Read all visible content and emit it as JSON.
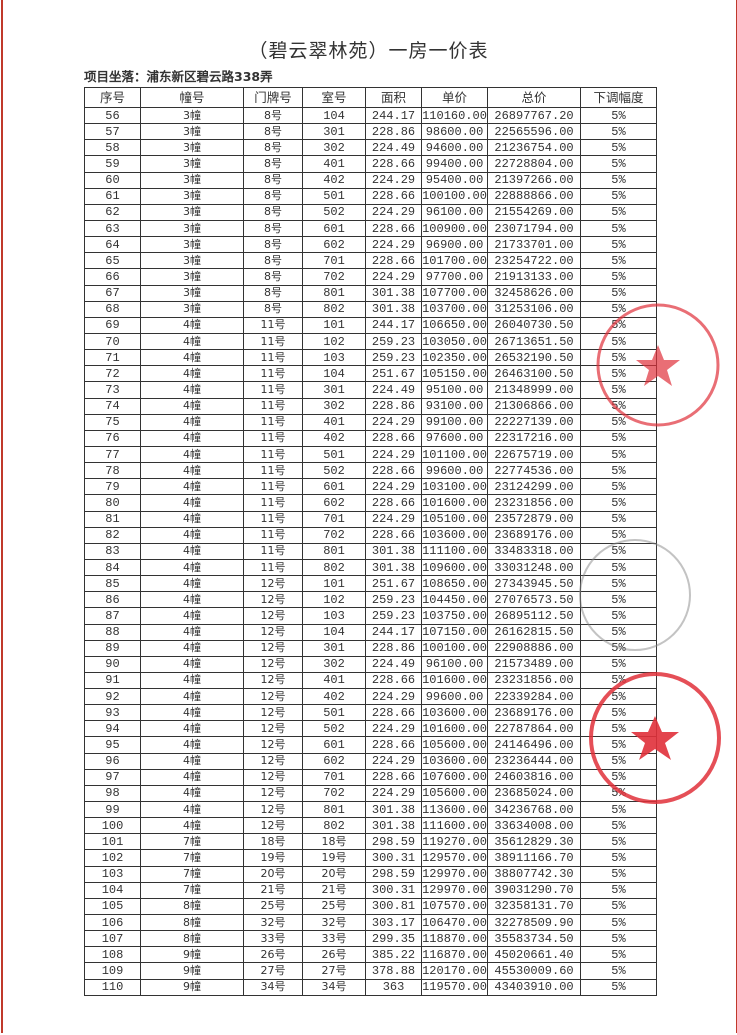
{
  "document": {
    "title": "（碧云翠林苑）一房一价表",
    "location": "项目坐落：浦东新区碧云路338弄",
    "columns": [
      "序号",
      "幢号",
      "门牌号",
      "室号",
      "面积",
      "单价",
      "总价",
      "下调幅度"
    ],
    "rows": [
      [
        "56",
        "3幢",
        "8号",
        "104",
        "244.17",
        "110160.00",
        "26897767.20",
        "5%"
      ],
      [
        "57",
        "3幢",
        "8号",
        "301",
        "228.86",
        "98600.00",
        "22565596.00",
        "5%"
      ],
      [
        "58",
        "3幢",
        "8号",
        "302",
        "224.49",
        "94600.00",
        "21236754.00",
        "5%"
      ],
      [
        "59",
        "3幢",
        "8号",
        "401",
        "228.66",
        "99400.00",
        "22728804.00",
        "5%"
      ],
      [
        "60",
        "3幢",
        "8号",
        "402",
        "224.29",
        "95400.00",
        "21397266.00",
        "5%"
      ],
      [
        "61",
        "3幢",
        "8号",
        "501",
        "228.66",
        "100100.00",
        "22888866.00",
        "5%"
      ],
      [
        "62",
        "3幢",
        "8号",
        "502",
        "224.29",
        "96100.00",
        "21554269.00",
        "5%"
      ],
      [
        "63",
        "3幢",
        "8号",
        "601",
        "228.66",
        "100900.00",
        "23071794.00",
        "5%"
      ],
      [
        "64",
        "3幢",
        "8号",
        "602",
        "224.29",
        "96900.00",
        "21733701.00",
        "5%"
      ],
      [
        "65",
        "3幢",
        "8号",
        "701",
        "228.66",
        "101700.00",
        "23254722.00",
        "5%"
      ],
      [
        "66",
        "3幢",
        "8号",
        "702",
        "224.29",
        "97700.00",
        "21913133.00",
        "5%"
      ],
      [
        "67",
        "3幢",
        "8号",
        "801",
        "301.38",
        "107700.00",
        "32458626.00",
        "5%"
      ],
      [
        "68",
        "3幢",
        "8号",
        "802",
        "301.38",
        "103700.00",
        "31253106.00",
        "5%"
      ],
      [
        "69",
        "4幢",
        "11号",
        "101",
        "244.17",
        "106650.00",
        "26040730.50",
        "5%"
      ],
      [
        "70",
        "4幢",
        "11号",
        "102",
        "259.23",
        "103050.00",
        "26713651.50",
        "5%"
      ],
      [
        "71",
        "4幢",
        "11号",
        "103",
        "259.23",
        "102350.00",
        "26532190.50",
        "5%"
      ],
      [
        "72",
        "4幢",
        "11号",
        "104",
        "251.67",
        "105150.00",
        "26463100.50",
        "5%"
      ],
      [
        "73",
        "4幢",
        "11号",
        "301",
        "224.49",
        "95100.00",
        "21348999.00",
        "5%"
      ],
      [
        "74",
        "4幢",
        "11号",
        "302",
        "228.86",
        "93100.00",
        "21306866.00",
        "5%"
      ],
      [
        "75",
        "4幢",
        "11号",
        "401",
        "224.29",
        "99100.00",
        "22227139.00",
        "5%"
      ],
      [
        "76",
        "4幢",
        "11号",
        "402",
        "228.66",
        "97600.00",
        "22317216.00",
        "5%"
      ],
      [
        "77",
        "4幢",
        "11号",
        "501",
        "224.29",
        "101100.00",
        "22675719.00",
        "5%"
      ],
      [
        "78",
        "4幢",
        "11号",
        "502",
        "228.66",
        "99600.00",
        "22774536.00",
        "5%"
      ],
      [
        "79",
        "4幢",
        "11号",
        "601",
        "224.29",
        "103100.00",
        "23124299.00",
        "5%"
      ],
      [
        "80",
        "4幢",
        "11号",
        "602",
        "228.66",
        "101600.00",
        "23231856.00",
        "5%"
      ],
      [
        "81",
        "4幢",
        "11号",
        "701",
        "224.29",
        "105100.00",
        "23572879.00",
        "5%"
      ],
      [
        "82",
        "4幢",
        "11号",
        "702",
        "228.66",
        "103600.00",
        "23689176.00",
        "5%"
      ],
      [
        "83",
        "4幢",
        "11号",
        "801",
        "301.38",
        "111100.00",
        "33483318.00",
        "5%"
      ],
      [
        "84",
        "4幢",
        "11号",
        "802",
        "301.38",
        "109600.00",
        "33031248.00",
        "5%"
      ],
      [
        "85",
        "4幢",
        "12号",
        "101",
        "251.67",
        "108650.00",
        "27343945.50",
        "5%"
      ],
      [
        "86",
        "4幢",
        "12号",
        "102",
        "259.23",
        "104450.00",
        "27076573.50",
        "5%"
      ],
      [
        "87",
        "4幢",
        "12号",
        "103",
        "259.23",
        "103750.00",
        "26895112.50",
        "5%"
      ],
      [
        "88",
        "4幢",
        "12号",
        "104",
        "244.17",
        "107150.00",
        "26162815.50",
        "5%"
      ],
      [
        "89",
        "4幢",
        "12号",
        "301",
        "228.86",
        "100100.00",
        "22908886.00",
        "5%"
      ],
      [
        "90",
        "4幢",
        "12号",
        "302",
        "224.49",
        "96100.00",
        "21573489.00",
        "5%"
      ],
      [
        "91",
        "4幢",
        "12号",
        "401",
        "228.66",
        "101600.00",
        "23231856.00",
        "5%"
      ],
      [
        "92",
        "4幢",
        "12号",
        "402",
        "224.29",
        "99600.00",
        "22339284.00",
        "5%"
      ],
      [
        "93",
        "4幢",
        "12号",
        "501",
        "228.66",
        "103600.00",
        "23689176.00",
        "5%"
      ],
      [
        "94",
        "4幢",
        "12号",
        "502",
        "224.29",
        "101600.00",
        "22787864.00",
        "5%"
      ],
      [
        "95",
        "4幢",
        "12号",
        "601",
        "228.66",
        "105600.00",
        "24146496.00",
        "5%"
      ],
      [
        "96",
        "4幢",
        "12号",
        "602",
        "224.29",
        "103600.00",
        "23236444.00",
        "5%"
      ],
      [
        "97",
        "4幢",
        "12号",
        "701",
        "228.66",
        "107600.00",
        "24603816.00",
        "5%"
      ],
      [
        "98",
        "4幢",
        "12号",
        "702",
        "224.29",
        "105600.00",
        "23685024.00",
        "5%"
      ],
      [
        "99",
        "4幢",
        "12号",
        "801",
        "301.38",
        "113600.00",
        "34236768.00",
        "5%"
      ],
      [
        "100",
        "4幢",
        "12号",
        "802",
        "301.38",
        "111600.00",
        "33634008.00",
        "5%"
      ],
      [
        "101",
        "7幢",
        "18号",
        "18号",
        "298.59",
        "119270.00",
        "35612829.30",
        "5%"
      ],
      [
        "102",
        "7幢",
        "19号",
        "19号",
        "300.31",
        "129570.00",
        "38911166.70",
        "5%"
      ],
      [
        "103",
        "7幢",
        "20号",
        "20号",
        "298.59",
        "129970.00",
        "38807742.30",
        "5%"
      ],
      [
        "104",
        "7幢",
        "21号",
        "21号",
        "300.31",
        "129970.00",
        "39031290.70",
        "5%"
      ],
      [
        "105",
        "8幢",
        "25号",
        "25号",
        "300.81",
        "107570.00",
        "32358131.70",
        "5%"
      ],
      [
        "106",
        "8幢",
        "32号",
        "32号",
        "303.17",
        "106470.00",
        "32278509.90",
        "5%"
      ],
      [
        "107",
        "8幢",
        "33号",
        "33号",
        "299.35",
        "118870.00",
        "35583734.50",
        "5%"
      ],
      [
        "108",
        "9幢",
        "26号",
        "26号",
        "385.22",
        "116870.00",
        "45020661.40",
        "5%"
      ],
      [
        "109",
        "9幢",
        "27号",
        "27号",
        "378.88",
        "120170.00",
        "45530009.60",
        "5%"
      ],
      [
        "110",
        "9幢",
        "34号",
        "34号",
        "363",
        "119570.00",
        "43403910.00",
        "5%"
      ]
    ]
  },
  "colors": {
    "border": "#c0392b",
    "stamp": "#e0303a",
    "stamp_faded": "#888888"
  }
}
